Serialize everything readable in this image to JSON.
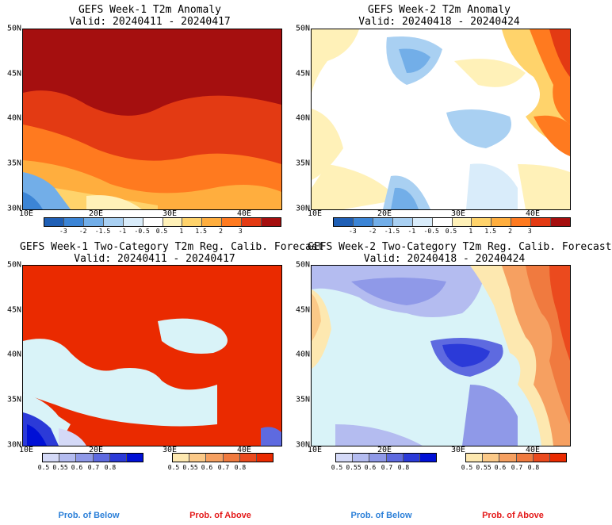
{
  "panels": [
    {
      "id": "p1",
      "title1": "GEFS Week-1 T2m Anomaly",
      "title2": "Valid: 20240411 - 20240417"
    },
    {
      "id": "p2",
      "title1": "GEFS Week-2 T2m Anomaly",
      "title2": "Valid: 20240418 - 20240424"
    },
    {
      "id": "p3",
      "title1": "GEFS Week-1 Two-Category T2m Reg. Calib. Forecast",
      "title2": "Valid: 20240411 - 20240417"
    },
    {
      "id": "p4",
      "title1": "GEFS Week-2 Two-Category T2m Reg. Calib. Forecast",
      "title2": "Valid: 20240418 - 20240424"
    }
  ],
  "lat_labels": [
    "50N",
    "45N",
    "40N",
    "35N",
    "30N"
  ],
  "lon_labels": [
    "10E",
    "20E",
    "30E",
    "40E"
  ],
  "anomaly_colorbar": {
    "ticks": [
      "-3",
      "-2",
      "-1.5",
      "-1",
      "-0.5",
      "0.5",
      "1",
      "1.5",
      "2",
      "3"
    ],
    "colors": [
      "#1f5fb5",
      "#3c85d6",
      "#72aee8",
      "#a9d0f2",
      "#d9ecfa",
      "#ffffff",
      "#fff1b8",
      "#ffd36b",
      "#ffae3e",
      "#ff7a1f",
      "#e33a13",
      "#a50f0f"
    ]
  },
  "prob_colorbar": {
    "below": {
      "ticks": [
        "0.5",
        "0.55",
        "0.6",
        "0.7",
        "0.8"
      ],
      "colors": [
        "#d4d9f7",
        "#b4bcf0",
        "#8f99e8",
        "#5e6ae0",
        "#2b3ad8",
        "#0010d6"
      ]
    },
    "above": {
      "ticks": [
        "0.5",
        "0.55",
        "0.6",
        "0.7",
        "0.8"
      ],
      "colors": [
        "#fde8b0",
        "#fbc988",
        "#f6a061",
        "#f07a3f",
        "#eb4a1e",
        "#ea2a00"
      ]
    },
    "below_label": "Prob. of Below",
    "above_label": "Prob. of Above",
    "below_color": "#2b7fd8",
    "above_color": "#e41a1a"
  }
}
